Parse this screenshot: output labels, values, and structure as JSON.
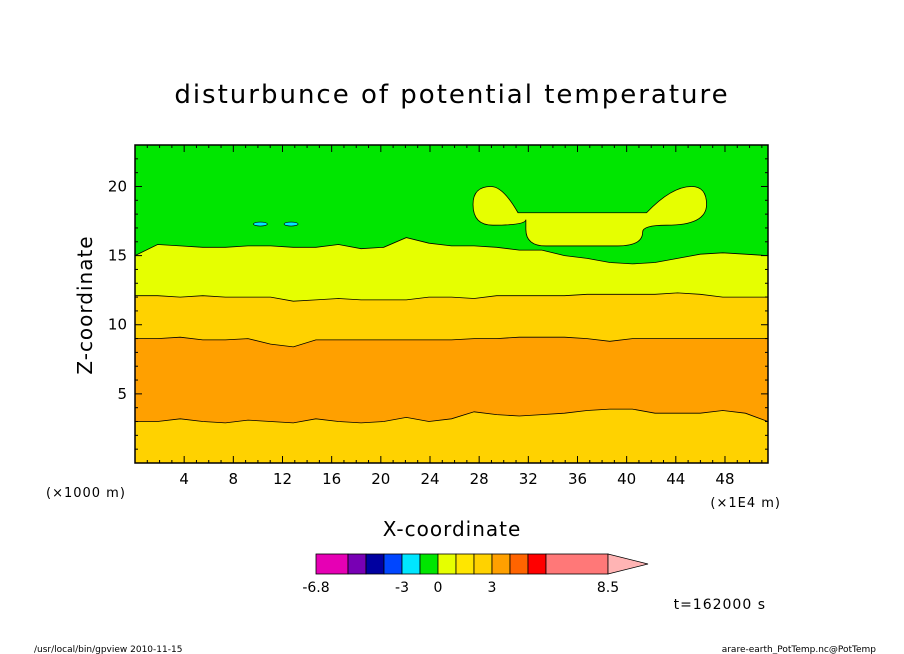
{
  "chart_data": {
    "type": "heatmap",
    "title": "disturbunce of potential temperature",
    "xlabel": "X-coordinate",
    "ylabel": "Z-coordinate",
    "x_unit_left": "(×1000 m)",
    "x_unit_right": "(×1E4 m)",
    "xlim": [
      0,
      51.5
    ],
    "ylim": [
      0,
      23
    ],
    "x_ticks": [
      4,
      8,
      12,
      16,
      20,
      24,
      28,
      32,
      36,
      40,
      44,
      48
    ],
    "y_ticks": [
      5,
      10,
      15,
      20
    ],
    "time_label": "t=162000 s",
    "colorbar": {
      "tick_labels": [
        "-6.8",
        "-3",
        "0",
        "3",
        "8.5"
      ],
      "tick_values": [
        -6.8,
        -3,
        0,
        3,
        8.5
      ],
      "colors": [
        "#e600b4",
        "#7800b4",
        "#0000a0",
        "#0046ff",
        "#00e6ff",
        "#00e600",
        "#e6ff00",
        "#ffe600",
        "#ffd200",
        "#ffa000",
        "#ff6400",
        "#ff0000",
        "#ff7878",
        "#ffb4b4"
      ],
      "extend": "max"
    },
    "layers": [
      {
        "name": "band-low",
        "color": "#ffd200",
        "z_top": [
          3.0,
          3.0,
          3.2,
          3.0,
          2.9,
          3.1,
          3.0,
          2.9,
          3.2,
          3.0,
          2.9,
          3.0,
          3.3,
          3.0,
          3.2,
          3.7,
          3.5,
          3.4,
          3.5,
          3.6,
          3.8,
          3.9,
          3.9,
          3.6,
          3.6,
          3.6,
          3.8,
          3.6,
          3.0
        ]
      },
      {
        "name": "band-mid-orange",
        "color": "#ffa000",
        "z_top": [
          9.0,
          9.0,
          9.1,
          8.9,
          8.9,
          9.0,
          8.6,
          8.4,
          8.9,
          8.9,
          8.9,
          8.9,
          8.9,
          8.9,
          8.9,
          9.0,
          9.0,
          9.1,
          9.1,
          9.1,
          9.0,
          8.8,
          9.0,
          9.0,
          9.0,
          9.0,
          9.0,
          9.0,
          9.0
        ]
      },
      {
        "name": "band-upper-yellow-orange",
        "color": "#ffd200",
        "z_top": [
          12.1,
          12.1,
          12.0,
          12.1,
          12.0,
          12.0,
          12.0,
          11.7,
          11.8,
          11.9,
          11.8,
          11.8,
          11.8,
          12.0,
          12.0,
          11.9,
          12.1,
          12.1,
          12.1,
          12.1,
          12.2,
          12.2,
          12.2,
          12.2,
          12.3,
          12.2,
          12.0,
          12.0,
          12.0
        ]
      },
      {
        "name": "band-yellow",
        "color": "#e6ff00",
        "z_top": [
          15.0,
          15.8,
          15.7,
          15.6,
          15.6,
          15.7,
          15.7,
          15.6,
          15.6,
          15.8,
          15.5,
          15.6,
          16.3,
          15.9,
          15.7,
          15.7,
          15.6,
          15.4,
          15.4,
          15.0,
          14.8,
          14.5,
          14.4,
          14.5,
          14.8,
          15.1,
          15.2,
          15.1,
          15.0
        ]
      },
      {
        "name": "band-top-green",
        "color": "#00e600",
        "z_top": [
          23.0
        ]
      }
    ],
    "features": [
      {
        "name": "upper-yellow-anvil",
        "color": "#e6ff00",
        "x_range": [
          27.5,
          46.5
        ],
        "z_range": [
          15.7,
          20.0
        ]
      },
      {
        "name": "cyan-patches",
        "color": "#00e6ff",
        "x_centers": [
          10.2,
          12.7
        ],
        "z": 17.5
      }
    ]
  },
  "footer": {
    "left": "/usr/local/bin/gpview   2010-11-15",
    "right": "arare-earth_PotTemp.nc@PotTemp"
  }
}
